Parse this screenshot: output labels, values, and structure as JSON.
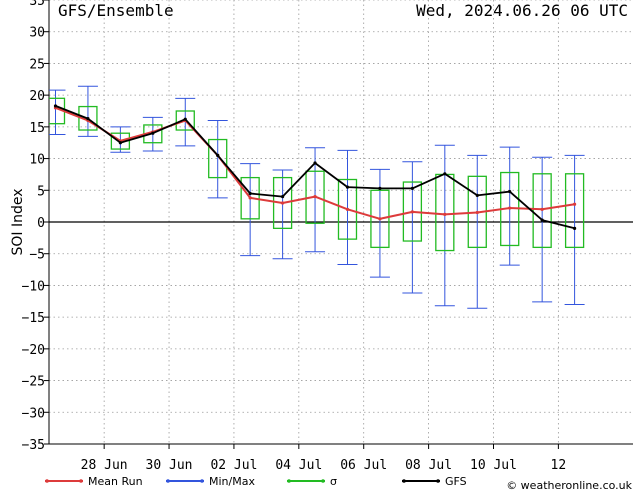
{
  "chart_data": {
    "type": "line",
    "title": "GFS/Ensemble",
    "date_label": "Wed, 2024.06.26   06 UTC",
    "ylabel": "SOI Index",
    "ylim": [
      -35,
      35
    ],
    "yticks": [
      35,
      30,
      25,
      20,
      15,
      10,
      5,
      0,
      -5,
      -10,
      -15,
      -20,
      -25,
      -30,
      -35
    ],
    "xlim": [
      26.3,
      44.3
    ],
    "x_ticks": [
      {
        "x": 28,
        "label": "28 Jun"
      },
      {
        "x": 30,
        "label": "30 Jun"
      },
      {
        "x": 32,
        "label": "02 Jul"
      },
      {
        "x": 34,
        "label": "04 Jul"
      },
      {
        "x": 36,
        "label": "06 Jul"
      },
      {
        "x": 38,
        "label": "08 Jul"
      },
      {
        "x": 40,
        "label": "10 Jul"
      },
      {
        "x": 42,
        "label": "12"
      }
    ],
    "x": [
      26.5,
      27.5,
      28.5,
      29.5,
      30.5,
      31.5,
      32.5,
      33.5,
      34.5,
      35.5,
      36.5,
      37.5,
      38.5,
      39.5,
      40.5,
      41.5,
      42.5
    ],
    "series": [
      {
        "name": "Mean Run",
        "color": "#dd3b3b",
        "values": [
          18.0,
          16.0,
          12.8,
          14.2,
          16.0,
          10.5,
          3.8,
          3.0,
          4.0,
          2.0,
          0.5,
          1.6,
          1.2,
          1.5,
          2.2,
          2.0,
          2.8
        ]
      },
      {
        "name": "Min/Max",
        "color": "#3355dd",
        "min": [
          13.8,
          13.5,
          11.0,
          11.2,
          12.0,
          3.8,
          -5.3,
          -5.8,
          -4.7,
          -6.7,
          -8.7,
          -11.2,
          -13.2,
          -13.6,
          -6.8,
          -12.6,
          -13.0
        ],
        "max": [
          20.8,
          21.4,
          15.0,
          16.5,
          19.5,
          16.0,
          9.2,
          8.2,
          11.7,
          11.3,
          8.3,
          9.5,
          12.1,
          10.5,
          11.8,
          10.2,
          10.5
        ]
      },
      {
        "name": "σ",
        "color": "#22bb22",
        "low": [
          15.5,
          14.5,
          11.5,
          12.5,
          14.5,
          7.0,
          0.5,
          -1.0,
          -0.2,
          -2.7,
          -4.0,
          -3.0,
          -4.5,
          -4.0,
          -3.7,
          -4.0,
          -4.0
        ],
        "high": [
          19.5,
          18.2,
          14.0,
          15.3,
          17.5,
          13.0,
          7.0,
          7.0,
          8.0,
          6.7,
          5.0,
          6.3,
          7.5,
          7.2,
          7.8,
          7.6,
          7.6
        ]
      },
      {
        "name": "GFS",
        "color": "#000000",
        "values": [
          18.3,
          16.3,
          12.5,
          14.0,
          16.2,
          10.5,
          4.5,
          4.0,
          9.3,
          5.5,
          5.3,
          5.3,
          7.6,
          4.2,
          4.8,
          0.3,
          -1.0
        ]
      }
    ],
    "grid": true,
    "legend_position": "bottom",
    "credit": "© weatheronline.co.uk"
  }
}
